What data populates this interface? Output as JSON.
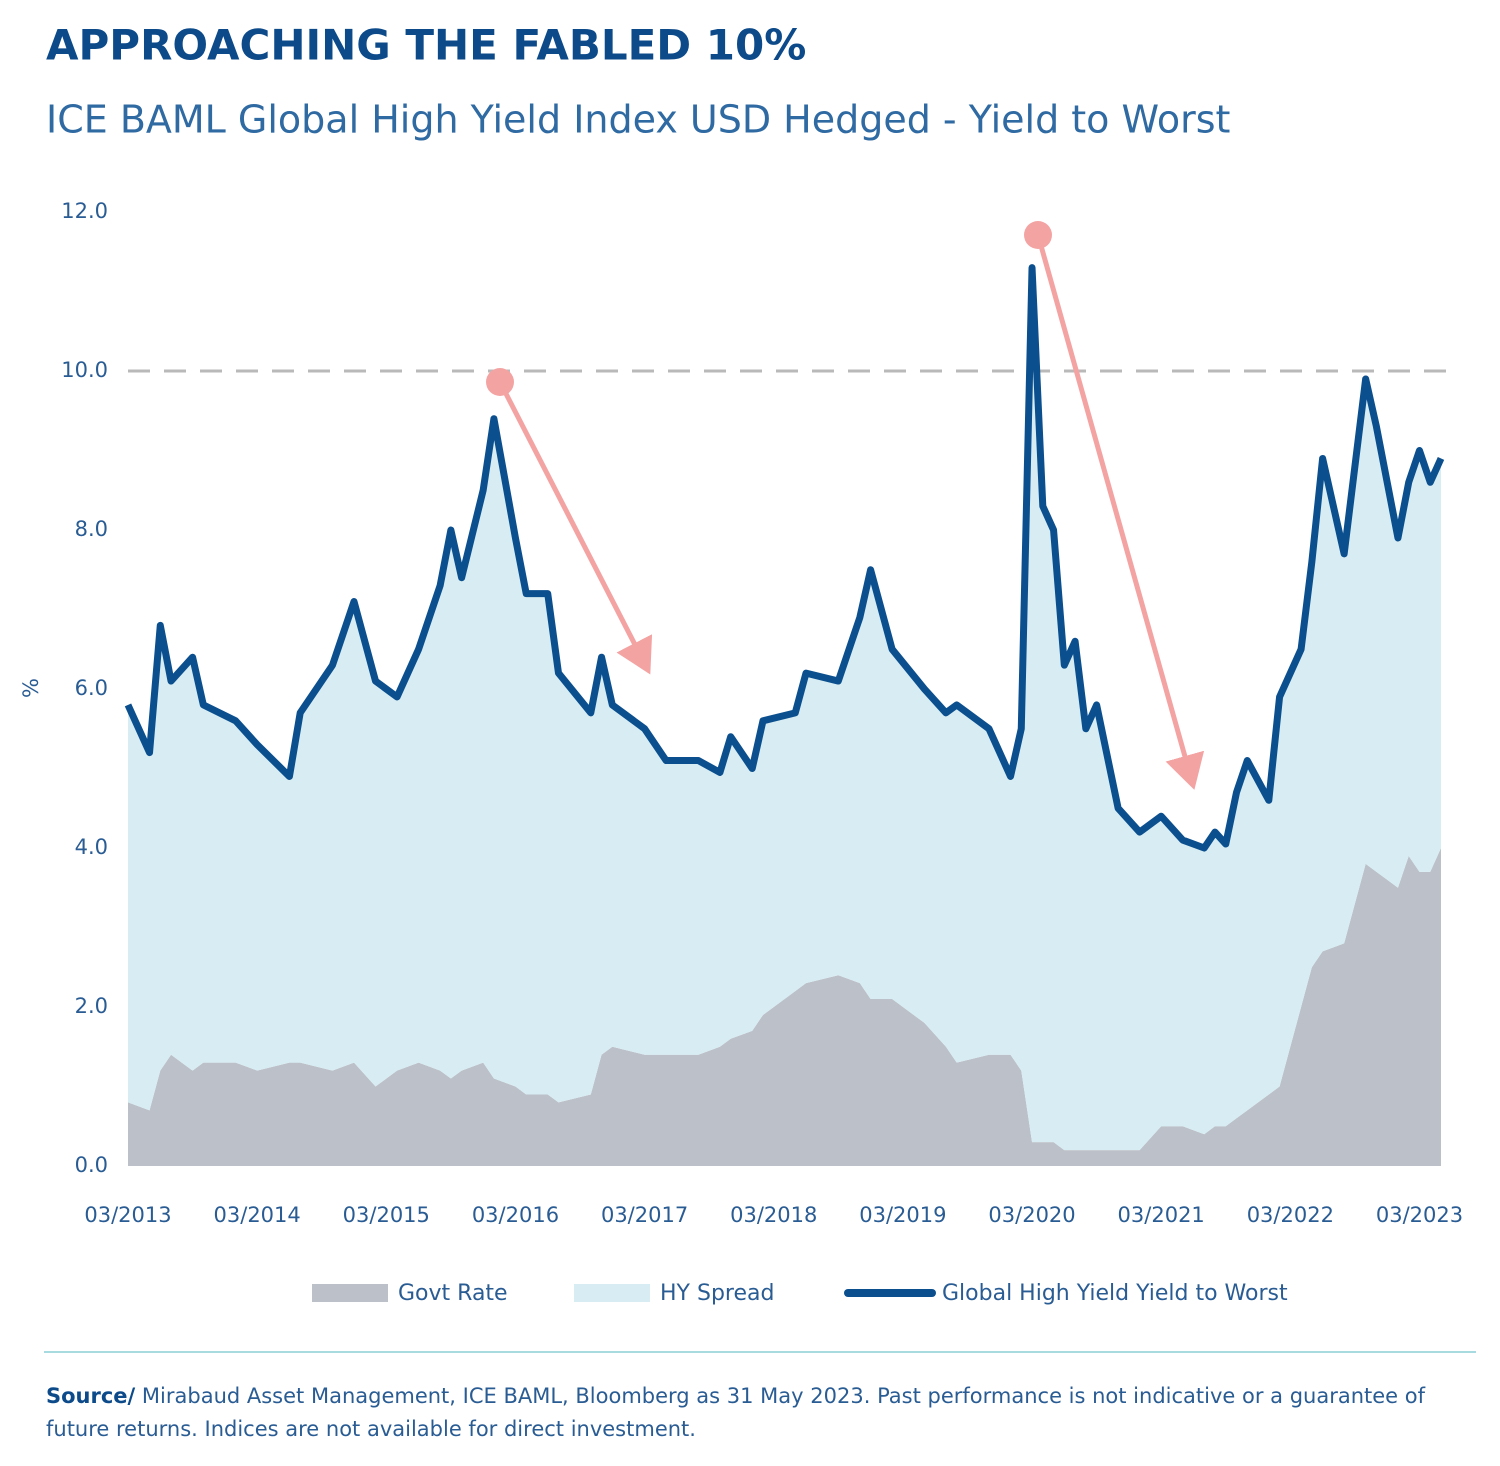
{
  "chart_data": {
    "type": "stacked_area_line",
    "title": "APPROACHING THE FABLED 10%",
    "subtitle": "ICE BAML Global High Yield Index USD Hedged - Yield to Worst",
    "ylabel": "%",
    "x": [
      "2013-03",
      "2013-05",
      "2013-06",
      "2013-07",
      "2013-09",
      "2013-10",
      "2014-01",
      "2014-03",
      "2014-06",
      "2014-07",
      "2014-10",
      "2014-12",
      "2015-02",
      "2015-04",
      "2015-06",
      "2015-08",
      "2015-09",
      "2015-10",
      "2015-12",
      "2016-01",
      "2016-03",
      "2016-04",
      "2016-06",
      "2016-07",
      "2016-10",
      "2016-11",
      "2016-12",
      "2017-03",
      "2017-05",
      "2017-08",
      "2017-10",
      "2017-11",
      "2018-01",
      "2018-02",
      "2018-05",
      "2018-06",
      "2018-09",
      "2018-11",
      "2018-12",
      "2019-02",
      "2019-05",
      "2019-07",
      "2019-08",
      "2019-11",
      "2020-01",
      "2020-02",
      "2020-03",
      "2020-04",
      "2020-05",
      "2020-06",
      "2020-07",
      "2020-08",
      "2020-09",
      "2020-11",
      "2021-01",
      "2021-03",
      "2021-05",
      "2021-07",
      "2021-08",
      "2021-09",
      "2021-10",
      "2021-11",
      "2022-01",
      "2022-02",
      "2022-04",
      "2022-05",
      "2022-06",
      "2022-08",
      "2022-10",
      "2022-11",
      "2022-12",
      "2023-01",
      "2023-02",
      "2023-03",
      "2023-04",
      "2023-05"
    ],
    "series": [
      {
        "name": "Govt Rate",
        "kind": "area",
        "color": "#bcc0c8",
        "values": [
          0.8,
          0.7,
          1.2,
          1.4,
          1.2,
          1.3,
          1.3,
          1.2,
          1.3,
          1.3,
          1.2,
          1.3,
          1.0,
          1.2,
          1.3,
          1.2,
          1.1,
          1.2,
          1.3,
          1.1,
          1.0,
          0.9,
          0.9,
          0.8,
          0.9,
          1.4,
          1.5,
          1.4,
          1.4,
          1.4,
          1.5,
          1.6,
          1.7,
          1.9,
          2.2,
          2.3,
          2.4,
          2.3,
          2.1,
          2.1,
          1.8,
          1.5,
          1.3,
          1.4,
          1.4,
          1.2,
          0.3,
          0.3,
          0.3,
          0.2,
          0.2,
          0.2,
          0.2,
          0.2,
          0.2,
          0.5,
          0.5,
          0.4,
          0.5,
          0.5,
          0.6,
          0.7,
          0.9,
          1.0,
          2.0,
          2.5,
          2.7,
          2.8,
          3.8,
          3.7,
          3.6,
          3.5,
          3.9,
          3.7,
          3.7,
          4.0
        ]
      },
      {
        "name": "HY Spread",
        "kind": "area",
        "color": "#d7edf3",
        "values": [
          5.0,
          4.5,
          5.6,
          4.7,
          5.2,
          4.5,
          4.3,
          4.1,
          3.6,
          4.4,
          5.1,
          5.8,
          5.1,
          4.7,
          5.2,
          6.1,
          6.9,
          6.2,
          7.2,
          8.3,
          6.9,
          6.3,
          6.3,
          5.4,
          4.8,
          5.0,
          4.3,
          4.1,
          3.7,
          3.7,
          3.45,
          3.8,
          3.3,
          3.7,
          3.5,
          3.9,
          3.7,
          4.6,
          5.4,
          4.4,
          4.2,
          4.2,
          4.5,
          4.1,
          3.5,
          4.3,
          11.0,
          8.0,
          7.7,
          6.1,
          6.4,
          5.3,
          5.6,
          4.3,
          4.0,
          3.9,
          3.6,
          3.6,
          3.7,
          3.55,
          4.1,
          4.4,
          3.7,
          4.9,
          4.5,
          5.1,
          6.2,
          4.9,
          6.1,
          5.6,
          5.0,
          4.4,
          4.7,
          5.3,
          4.9,
          4.9
        ]
      },
      {
        "name": "Global High Yield Yield to Worst",
        "kind": "line",
        "color": "#0b4f8e",
        "values": [
          5.8,
          5.2,
          6.8,
          6.1,
          6.4,
          5.8,
          5.6,
          5.3,
          4.9,
          5.7,
          6.3,
          7.1,
          6.1,
          5.9,
          6.5,
          7.3,
          8.0,
          7.4,
          8.5,
          9.4,
          7.9,
          7.2,
          7.2,
          6.2,
          5.7,
          6.4,
          5.8,
          5.5,
          5.1,
          5.1,
          4.95,
          5.4,
          5.0,
          5.6,
          5.7,
          6.2,
          6.1,
          6.9,
          7.5,
          6.5,
          6.0,
          5.7,
          5.8,
          5.5,
          4.9,
          5.5,
          11.3,
          8.3,
          8.0,
          6.3,
          6.6,
          5.5,
          5.8,
          4.5,
          4.2,
          4.4,
          4.1,
          4.0,
          4.2,
          4.05,
          4.7,
          5.1,
          4.6,
          5.9,
          6.5,
          7.6,
          8.9,
          7.7,
          9.9,
          9.3,
          8.6,
          7.9,
          8.6,
          9.0,
          8.6,
          8.9
        ]
      }
    ],
    "xlim": [
      "2013-03",
      "2023-05"
    ],
    "xticks": [
      {
        "value": "2013-03",
        "label": "03/2013"
      },
      {
        "value": "2014-03",
        "label": "03/2014"
      },
      {
        "value": "2015-03",
        "label": "03/2015"
      },
      {
        "value": "2016-03",
        "label": "03/2016"
      },
      {
        "value": "2017-03",
        "label": "03/2017"
      },
      {
        "value": "2018-03",
        "label": "03/2018"
      },
      {
        "value": "2019-03",
        "label": "03/2019"
      },
      {
        "value": "2020-03",
        "label": "03/2020"
      },
      {
        "value": "2021-03",
        "label": "03/2021"
      },
      {
        "value": "2022-03",
        "label": "03/2022"
      },
      {
        "value": "2023-03",
        "label": "03/2023"
      }
    ],
    "ylim": [
      0,
      12
    ],
    "yticks": [
      {
        "value": 0,
        "label": "0.0"
      },
      {
        "value": 2,
        "label": "2.0"
      },
      {
        "value": 4,
        "label": "4.0"
      },
      {
        "value": 6,
        "label": "6.0"
      },
      {
        "value": 8,
        "label": "8.0"
      },
      {
        "value": 10,
        "label": "10.0"
      },
      {
        "value": 12,
        "label": "12.0"
      }
    ],
    "reference_line": 10,
    "grid": false,
    "legend": "bottom",
    "source_label": "Source/",
    "source_text": " Mirabaud Asset Management, ICE BAML, Bloomberg as 31 May 2023. Past performance is not indicative or a guarantee of future returns. Indices are not available for direct investment."
  }
}
